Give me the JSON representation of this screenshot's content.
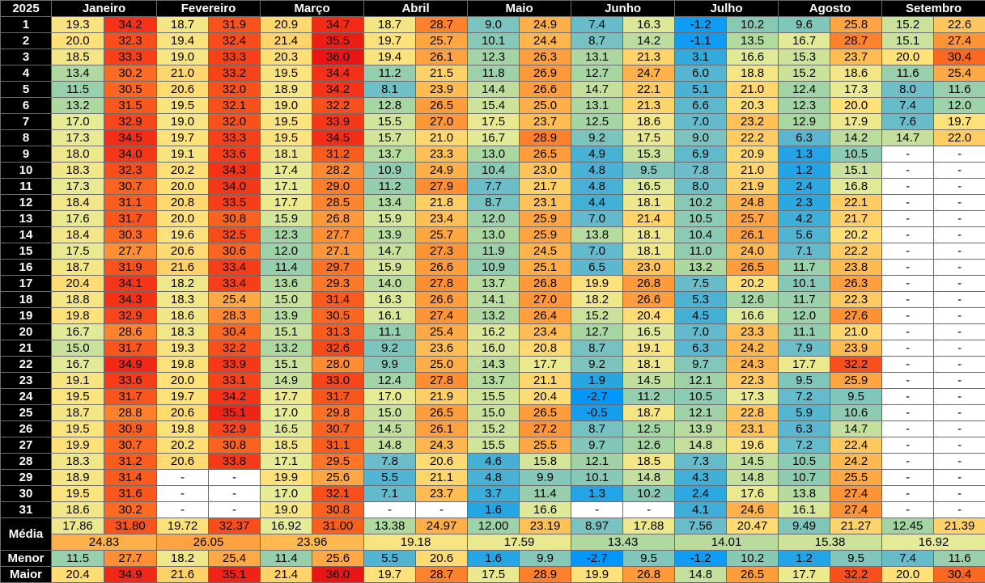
{
  "year": "2025",
  "months": [
    "Janeiro",
    "Fevereiro",
    "Março",
    "Abril",
    "Maio",
    "Junho",
    "Julho",
    "Agosto",
    "Setembro"
  ],
  "days": [
    "1",
    "2",
    "3",
    "4",
    "5",
    "6",
    "7",
    "8",
    "9",
    "10",
    "11",
    "12",
    "13",
    "14",
    "15",
    "16",
    "17",
    "18",
    "19",
    "20",
    "21",
    "22",
    "23",
    "24",
    "25",
    "26",
    "27",
    "28",
    "29",
    "30",
    "31"
  ],
  "dash": "-",
  "grid": [
    [
      [
        "19.3",
        "34.2"
      ],
      [
        "18.7",
        "31.9"
      ],
      [
        "20.9",
        "34.7"
      ],
      [
        "18.7",
        "28.7"
      ],
      [
        "9.0",
        "24.9"
      ],
      [
        "7.4",
        "16.3"
      ],
      [
        "-1.2",
        "10.2"
      ],
      [
        "9.6",
        "25.8"
      ],
      [
        "15.2",
        "22.6"
      ]
    ],
    [
      [
        "20.0",
        "32.3"
      ],
      [
        "19.4",
        "32.4"
      ],
      [
        "21.4",
        "35.5"
      ],
      [
        "19.7",
        "25.7"
      ],
      [
        "10.1",
        "24.4"
      ],
      [
        "8.7",
        "14.2"
      ],
      [
        "-1.1",
        "13.5"
      ],
      [
        "16.7",
        "28.7"
      ],
      [
        "15.1",
        "27.4"
      ]
    ],
    [
      [
        "18.5",
        "33.3"
      ],
      [
        "19.0",
        "33.3"
      ],
      [
        "20.3",
        "36.0"
      ],
      [
        "19.4",
        "26.1"
      ],
      [
        "12.3",
        "26.3"
      ],
      [
        "13.1",
        "21.3"
      ],
      [
        "3.1",
        "16.6"
      ],
      [
        "15.3",
        "23.7"
      ],
      [
        "20.0",
        "30.4"
      ]
    ],
    [
      [
        "13.4",
        "30.2"
      ],
      [
        "21.0",
        "33.2"
      ],
      [
        "19.5",
        "34.4"
      ],
      [
        "11.2",
        "21.5"
      ],
      [
        "11.8",
        "26.9"
      ],
      [
        "12.7",
        "24.7"
      ],
      [
        "6.0",
        "18.8"
      ],
      [
        "15.2",
        "18.6"
      ],
      [
        "11.6",
        "25.4"
      ]
    ],
    [
      [
        "11.5",
        "30.5"
      ],
      [
        "20.6",
        "32.0"
      ],
      [
        "18.9",
        "34.2"
      ],
      [
        "8.1",
        "23.9"
      ],
      [
        "14.4",
        "26.6"
      ],
      [
        "14.7",
        "22.1"
      ],
      [
        "5.1",
        "21.0"
      ],
      [
        "12.4",
        "17.3"
      ],
      [
        "8.0",
        "11.6"
      ]
    ],
    [
      [
        "13.2",
        "31.5"
      ],
      [
        "19.5",
        "32.1"
      ],
      [
        "19.0",
        "32.2"
      ],
      [
        "12.8",
        "26.5"
      ],
      [
        "15.4",
        "25.0"
      ],
      [
        "13.1",
        "21.3"
      ],
      [
        "6.6",
        "20.3"
      ],
      [
        "12.3",
        "20.0"
      ],
      [
        "7.4",
        "12.0"
      ]
    ],
    [
      [
        "17.0",
        "32.9"
      ],
      [
        "19.0",
        "32.0"
      ],
      [
        "19.5",
        "33.9"
      ],
      [
        "15.5",
        "27.0"
      ],
      [
        "17.5",
        "23.7"
      ],
      [
        "12.5",
        "18.6"
      ],
      [
        "7.0",
        "23.2"
      ],
      [
        "12.9",
        "17.9"
      ],
      [
        "7.6",
        "19.7"
      ]
    ],
    [
      [
        "17.3",
        "34.5"
      ],
      [
        "19.7",
        "33.3"
      ],
      [
        "19.5",
        "34.5"
      ],
      [
        "15.7",
        "21.0"
      ],
      [
        "16.7",
        "28.9"
      ],
      [
        "9.2",
        "17.5"
      ],
      [
        "9.0",
        "22.2"
      ],
      [
        "6.3",
        "14.2"
      ],
      [
        "14.7",
        "22.0"
      ]
    ],
    [
      [
        "18.0",
        "34.0"
      ],
      [
        "19.1",
        "33.6"
      ],
      [
        "18.1",
        "31.2"
      ],
      [
        "13.7",
        "23.3"
      ],
      [
        "13.0",
        "26.5"
      ],
      [
        "4.9",
        "15.3"
      ],
      [
        "6.9",
        "20.9"
      ],
      [
        "1.3",
        "10.5"
      ],
      [
        "-",
        "-"
      ]
    ],
    [
      [
        "18.3",
        "32.3"
      ],
      [
        "20.2",
        "34.3"
      ],
      [
        "17.4",
        "28.2"
      ],
      [
        "10.9",
        "24.9"
      ],
      [
        "10.4",
        "23.0"
      ],
      [
        "4.8",
        "9.5"
      ],
      [
        "7.8",
        "21.0"
      ],
      [
        "1.2",
        "15.1"
      ],
      [
        "-",
        "-"
      ]
    ],
    [
      [
        "17.3",
        "30.7"
      ],
      [
        "20.0",
        "34.0"
      ],
      [
        "17.1",
        "29.0"
      ],
      [
        "11.2",
        "27.9"
      ],
      [
        "7.7",
        "21.7"
      ],
      [
        "4.8",
        "16.5"
      ],
      [
        "8.0",
        "21.9"
      ],
      [
        "2.4",
        "16.8"
      ],
      [
        "-",
        "-"
      ]
    ],
    [
      [
        "18.4",
        "31.1"
      ],
      [
        "20.8",
        "33.5"
      ],
      [
        "17.7",
        "28.5"
      ],
      [
        "13.4",
        "21.8"
      ],
      [
        "8.7",
        "23.1"
      ],
      [
        "4.4",
        "18.1"
      ],
      [
        "10.2",
        "24.8"
      ],
      [
        "2.3",
        "22.1"
      ],
      [
        "-",
        "-"
      ]
    ],
    [
      [
        "17.6",
        "31.7"
      ],
      [
        "20.0",
        "30.8"
      ],
      [
        "15.9",
        "26.8"
      ],
      [
        "15.9",
        "23.4"
      ],
      [
        "12.0",
        "25.9"
      ],
      [
        "7.0",
        "21.4"
      ],
      [
        "10.5",
        "25.7"
      ],
      [
        "4.2",
        "21.7"
      ],
      [
        "-",
        "-"
      ]
    ],
    [
      [
        "18.4",
        "30.3"
      ],
      [
        "19.6",
        "32.5"
      ],
      [
        "12.3",
        "27.7"
      ],
      [
        "13.9",
        "25.7"
      ],
      [
        "13.0",
        "25.9"
      ],
      [
        "13.8",
        "18.1"
      ],
      [
        "10.4",
        "26.1"
      ],
      [
        "5.6",
        "20.2"
      ],
      [
        "-",
        "-"
      ]
    ],
    [
      [
        "17.5",
        "27.7"
      ],
      [
        "20.6",
        "30.6"
      ],
      [
        "12.0",
        "27.1"
      ],
      [
        "14.7",
        "27.3"
      ],
      [
        "11.9",
        "24.5"
      ],
      [
        "7.0",
        "18.1"
      ],
      [
        "11.0",
        "24.0"
      ],
      [
        "7.1",
        "22.2"
      ],
      [
        "-",
        "-"
      ]
    ],
    [
      [
        "18.7",
        "31.9"
      ],
      [
        "21.6",
        "33.4"
      ],
      [
        "11.4",
        "29.7"
      ],
      [
        "15.9",
        "26.6"
      ],
      [
        "10.9",
        "25.1"
      ],
      [
        "6.5",
        "23.0"
      ],
      [
        "13.2",
        "26.5"
      ],
      [
        "11.7",
        "23.8"
      ],
      [
        "-",
        "-"
      ]
    ],
    [
      [
        "20.4",
        "34.1"
      ],
      [
        "18.2",
        "33.4"
      ],
      [
        "13.6",
        "29.3"
      ],
      [
        "14.0",
        "27.8"
      ],
      [
        "13.7",
        "26.8"
      ],
      [
        "19.9",
        "26.8"
      ],
      [
        "7.5",
        "20.2"
      ],
      [
        "10.1",
        "26.3"
      ],
      [
        "-",
        "-"
      ]
    ],
    [
      [
        "18.8",
        "34.3"
      ],
      [
        "18.3",
        "25.4"
      ],
      [
        "15.0",
        "31.4"
      ],
      [
        "16.3",
        "26.6"
      ],
      [
        "14.1",
        "27.0"
      ],
      [
        "18.2",
        "26.6"
      ],
      [
        "5.3",
        "12.6"
      ],
      [
        "11.7",
        "22.3"
      ],
      [
        "-",
        "-"
      ]
    ],
    [
      [
        "19.8",
        "32.9"
      ],
      [
        "18.6",
        "28.3"
      ],
      [
        "13.9",
        "30.5"
      ],
      [
        "16.1",
        "27.4"
      ],
      [
        "13.2",
        "26.4"
      ],
      [
        "15.2",
        "20.4"
      ],
      [
        "4.5",
        "16.6"
      ],
      [
        "12.0",
        "27.6"
      ],
      [
        "-",
        "-"
      ]
    ],
    [
      [
        "16.7",
        "28.6"
      ],
      [
        "18.3",
        "30.4"
      ],
      [
        "15.1",
        "31.3"
      ],
      [
        "11.1",
        "25.4"
      ],
      [
        "16.2",
        "23.4"
      ],
      [
        "12.7",
        "16.5"
      ],
      [
        "7.0",
        "23.3"
      ],
      [
        "11.1",
        "21.0"
      ],
      [
        "-",
        "-"
      ]
    ],
    [
      [
        "15.0",
        "31.7"
      ],
      [
        "19.3",
        "32.2"
      ],
      [
        "13.2",
        "32.6"
      ],
      [
        "9.2",
        "23.6"
      ],
      [
        "16.0",
        "20.8"
      ],
      [
        "8.7",
        "19.1"
      ],
      [
        "6.3",
        "24.2"
      ],
      [
        "7.9",
        "23.9"
      ],
      [
        "-",
        "-"
      ]
    ],
    [
      [
        "16.7",
        "34.9"
      ],
      [
        "19.8",
        "33.9"
      ],
      [
        "15.1",
        "28.0"
      ],
      [
        "9.9",
        "25.0"
      ],
      [
        "14.3",
        "17.7"
      ],
      [
        "9.2",
        "18.1"
      ],
      [
        "9.7",
        "24.3"
      ],
      [
        "17.7",
        "32.2"
      ],
      [
        "-",
        "-"
      ]
    ],
    [
      [
        "19.1",
        "33.6"
      ],
      [
        "20.0",
        "33.1"
      ],
      [
        "14.9",
        "33.0"
      ],
      [
        "12.4",
        "27.8"
      ],
      [
        "13.7",
        "21.1"
      ],
      [
        "1.9",
        "14.5"
      ],
      [
        "12.1",
        "22.3"
      ],
      [
        "9.5",
        "25.9"
      ],
      [
        "-",
        "-"
      ]
    ],
    [
      [
        "19.5",
        "31.7"
      ],
      [
        "19.7",
        "34.2"
      ],
      [
        "17.7",
        "31.7"
      ],
      [
        "17.0",
        "21.9"
      ],
      [
        "15.5",
        "20.4"
      ],
      [
        "-2.7",
        "11.2"
      ],
      [
        "10.5",
        "17.3"
      ],
      [
        "7.2",
        "9.5"
      ],
      [
        "-",
        "-"
      ]
    ],
    [
      [
        "18.7",
        "28.8"
      ],
      [
        "20.6",
        "35.1"
      ],
      [
        "17.0",
        "29.8"
      ],
      [
        "15.0",
        "26.5"
      ],
      [
        "15.0",
        "26.5"
      ],
      [
        "-0.5",
        "18.7"
      ],
      [
        "12.1",
        "22.8"
      ],
      [
        "5.9",
        "10.6"
      ],
      [
        "-",
        "-"
      ]
    ],
    [
      [
        "19.5",
        "30.9"
      ],
      [
        "19.8",
        "32.9"
      ],
      [
        "16.5",
        "30.7"
      ],
      [
        "14.5",
        "26.1"
      ],
      [
        "15.2",
        "27.2"
      ],
      [
        "8.7",
        "12.5"
      ],
      [
        "13.9",
        "23.1"
      ],
      [
        "6.3",
        "14.7"
      ],
      [
        "-",
        "-"
      ]
    ],
    [
      [
        "19.9",
        "30.7"
      ],
      [
        "20.2",
        "30.8"
      ],
      [
        "18.5",
        "31.1"
      ],
      [
        "14.8",
        "24.3"
      ],
      [
        "15.5",
        "25.5"
      ],
      [
        "9.7",
        "12.6"
      ],
      [
        "14.8",
        "19.6"
      ],
      [
        "7.2",
        "22.4"
      ],
      [
        "-",
        "-"
      ]
    ],
    [
      [
        "18.3",
        "31.2"
      ],
      [
        "20.6",
        "33.8"
      ],
      [
        "17.1",
        "29.5"
      ],
      [
        "7.8",
        "20.6"
      ],
      [
        "4.6",
        "15.8"
      ],
      [
        "12.1",
        "18.5"
      ],
      [
        "7.3",
        "14.5"
      ],
      [
        "10.5",
        "24.2"
      ],
      [
        "-",
        "-"
      ]
    ],
    [
      [
        "18.9",
        "31.4"
      ],
      [
        "-",
        "-"
      ],
      [
        "19.9",
        "25.6"
      ],
      [
        "5.5",
        "21.1"
      ],
      [
        "4.8",
        "9.9"
      ],
      [
        "10.1",
        "14.8"
      ],
      [
        "4.3",
        "14.8"
      ],
      [
        "10.7",
        "25.5"
      ],
      [
        "-",
        "-"
      ]
    ],
    [
      [
        "19.5",
        "31.6"
      ],
      [
        "-",
        "-"
      ],
      [
        "17.0",
        "32.1"
      ],
      [
        "7.1",
        "23.7"
      ],
      [
        "3.7",
        "11.4"
      ],
      [
        "1.3",
        "10.2"
      ],
      [
        "2.4",
        "17.6"
      ],
      [
        "13.8",
        "27.4"
      ],
      [
        "-",
        "-"
      ]
    ],
    [
      [
        "18.6",
        "30.2"
      ],
      [
        "-",
        "-"
      ],
      [
        "19.0",
        "30.8"
      ],
      [
        "-",
        "-"
      ],
      [
        "1.6",
        "16.6"
      ],
      [
        "-",
        "-"
      ],
      [
        "4.1",
        "24.6"
      ],
      [
        "16.1",
        "27.4"
      ],
      [
        "-",
        "-"
      ]
    ]
  ],
  "summary": {
    "media_label": "Média",
    "menor_label": "Menor",
    "maior_label": "Maior",
    "media": [
      [
        "17.86",
        "31.80"
      ],
      [
        "19.72",
        "32.37"
      ],
      [
        "16.92",
        "31.00"
      ],
      [
        "13.38",
        "24.97"
      ],
      [
        "12.00",
        "23.19"
      ],
      [
        "8.97",
        "17.88"
      ],
      [
        "7.56",
        "20.47"
      ],
      [
        "9.49",
        "21.27"
      ],
      [
        "12.45",
        "21.39"
      ]
    ],
    "media_total": [
      "24.83",
      "26.05",
      "23.96",
      "19.18",
      "17.59",
      "13.43",
      "14.01",
      "15.38",
      "16.92"
    ],
    "menor": [
      [
        "11.5",
        "27.7"
      ],
      [
        "18.2",
        "25.4"
      ],
      [
        "11.4",
        "25.6"
      ],
      [
        "5.5",
        "20.6"
      ],
      [
        "1.6",
        "9.9"
      ],
      [
        "-2.7",
        "9.5"
      ],
      [
        "-1.2",
        "10.2"
      ],
      [
        "1.2",
        "9.5"
      ],
      [
        "7.4",
        "11.6"
      ]
    ],
    "maior": [
      [
        "20.4",
        "34.9"
      ],
      [
        "21.6",
        "35.1"
      ],
      [
        "21.4",
        "36.0"
      ],
      [
        "19.7",
        "28.7"
      ],
      [
        "17.5",
        "28.9"
      ],
      [
        "19.9",
        "26.8"
      ],
      [
        "14.8",
        "26.5"
      ],
      [
        "17.7",
        "32.2"
      ],
      [
        "20.0",
        "30.4"
      ]
    ]
  }
}
